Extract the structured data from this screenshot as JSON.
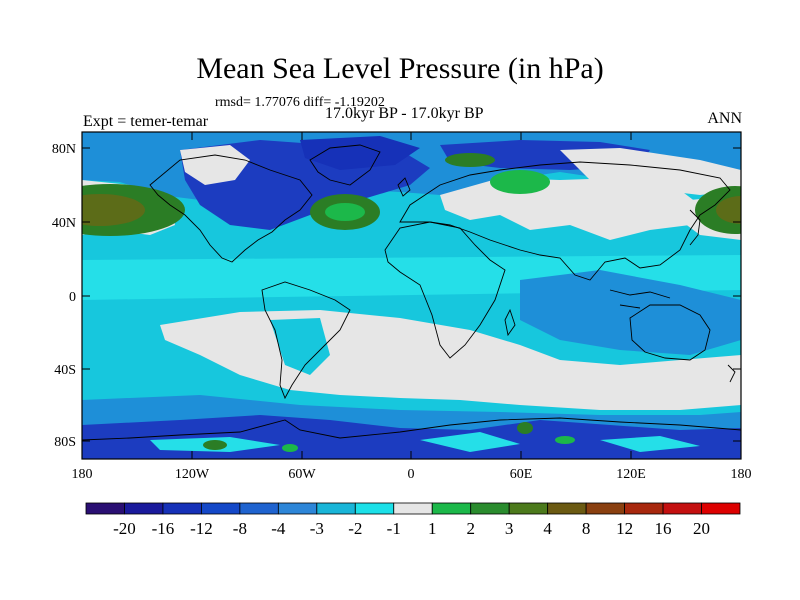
{
  "title": "Mean Sea Level Pressure (in hPa)",
  "stats": "rmsd= 1.77076 diff= -1.19202",
  "experiment": "Expt = temer-temar",
  "period": "17.0kyr BP - 17.0kyr BP",
  "season": "ANN",
  "lat_ticks": [
    "80N",
    "40N",
    "0",
    "40S",
    "80S"
  ],
  "lon_ticks": [
    "180",
    "120W",
    "60W",
    "0",
    "60E",
    "120E",
    "180"
  ],
  "colorbar": {
    "labels": [
      "-20",
      "-16",
      "-12",
      "-8",
      "-4",
      "-3",
      "-2",
      "-1",
      "1",
      "2",
      "3",
      "4",
      "8",
      "12",
      "16",
      "20"
    ],
    "colors": [
      "#2a0f73",
      "#1a1a9c",
      "#1631b8",
      "#1448c8",
      "#1f63cf",
      "#2d86d8",
      "#19b5d8",
      "#1ce0e8",
      "#e6e6e6",
      "#1cb84a",
      "#2a8c2e",
      "#4c7a1c",
      "#6b5a12",
      "#8a4010",
      "#a8280e",
      "#c41010",
      "#dd0000"
    ]
  },
  "palette": {
    "deep_blue": "#1c3cc0",
    "mid_blue": "#1e8fd8",
    "cyan": "#17c7dd",
    "light_cyan": "#25dfe8",
    "gray": "#e6e6e6",
    "green": "#1cb84a",
    "dark_green": "#2b7d25",
    "olive": "#5c6c18",
    "brown": "#7a4a14"
  }
}
